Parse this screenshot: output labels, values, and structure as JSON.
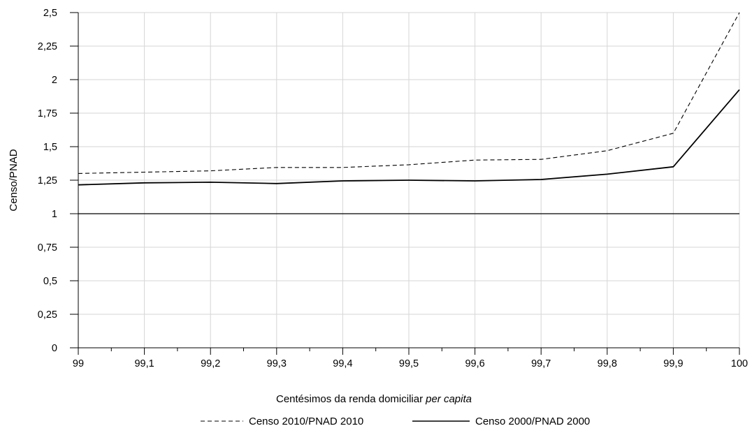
{
  "chart_data": {
    "type": "line",
    "title": "",
    "xlabel": "Centésimos da renda domiciliar",
    "xlabel_italic": "per capita",
    "ylabel": "Censo/PNAD",
    "x": [
      99,
      99.1,
      99.2,
      99.3,
      99.4,
      99.5,
      99.6,
      99.7,
      99.8,
      99.9,
      100
    ],
    "xtick_labels": [
      "99",
      "99,1",
      "99,2",
      "99,3",
      "99,4",
      "99,5",
      "99,6",
      "99,7",
      "99,8",
      "99,9",
      "100"
    ],
    "xlim": [
      99,
      100
    ],
    "ylim": [
      0,
      2.5
    ],
    "yticks": [
      0,
      0.25,
      0.5,
      0.75,
      1,
      1.25,
      1.5,
      1.75,
      2,
      2.25,
      2.5
    ],
    "ytick_labels": [
      "0",
      "0,25",
      "0,5",
      "0,75",
      "1",
      "1,25",
      "1,5",
      "1,75",
      "2",
      "2,25",
      "2,5"
    ],
    "grid": true,
    "reference_line": 1,
    "legend_position": "bottom",
    "series": [
      {
        "name": "Censo 2010/PNAD 2010",
        "style": "dashed",
        "values": [
          1.3,
          1.31,
          1.32,
          1.345,
          1.345,
          1.365,
          1.4,
          1.405,
          1.47,
          1.6,
          2.5
        ]
      },
      {
        "name": "Censo 2000/PNAD 2000",
        "style": "solid",
        "values": [
          1.215,
          1.23,
          1.235,
          1.225,
          1.245,
          1.25,
          1.245,
          1.255,
          1.295,
          1.35,
          1.925
        ]
      }
    ],
    "colors": {
      "lines": "#000000",
      "grid": "#d6d6d6",
      "axis": "#000000"
    }
  }
}
